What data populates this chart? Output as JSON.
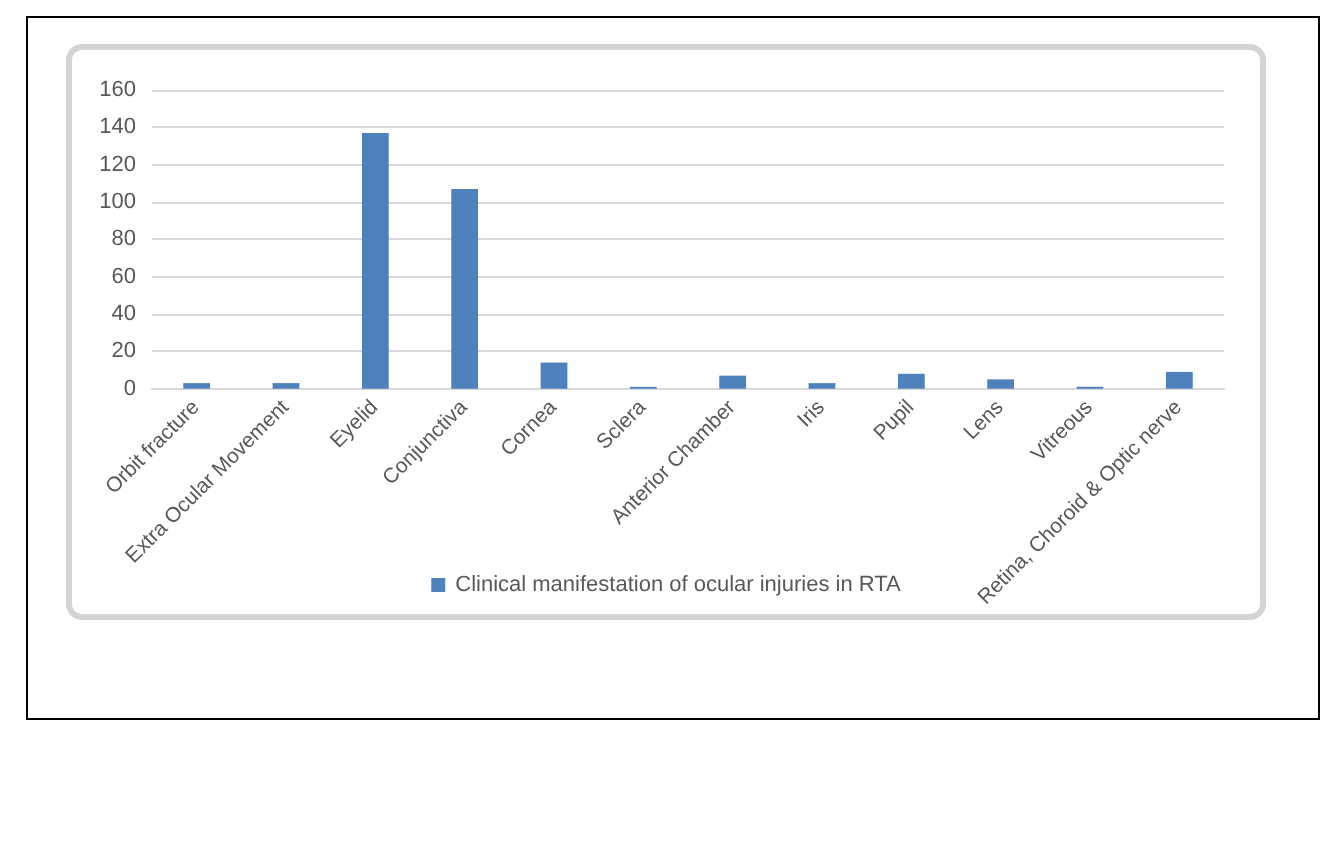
{
  "chart_data": {
    "type": "bar",
    "categories": [
      "Orbit fracture",
      "Extra Ocular Movement",
      "Eyelid",
      "Conjunctiva",
      "Cornea",
      "Sclera",
      "Anterior Chamber",
      "Iris",
      "Pupil",
      "Lens",
      "Vitreous",
      "Retina, Choroid & Optic nerve"
    ],
    "series": [
      {
        "name": "Clinical manifestation of ocular injuries in RTA",
        "color": "#4f81bd",
        "values": [
          3,
          3,
          137,
          107,
          14,
          1,
          7,
          3,
          8,
          5,
          1,
          9
        ]
      }
    ],
    "ylim": [
      0,
      160
    ],
    "yticks": [
      0,
      20,
      40,
      60,
      80,
      100,
      120,
      140,
      160
    ],
    "grid": "y",
    "legend": "bottom"
  }
}
